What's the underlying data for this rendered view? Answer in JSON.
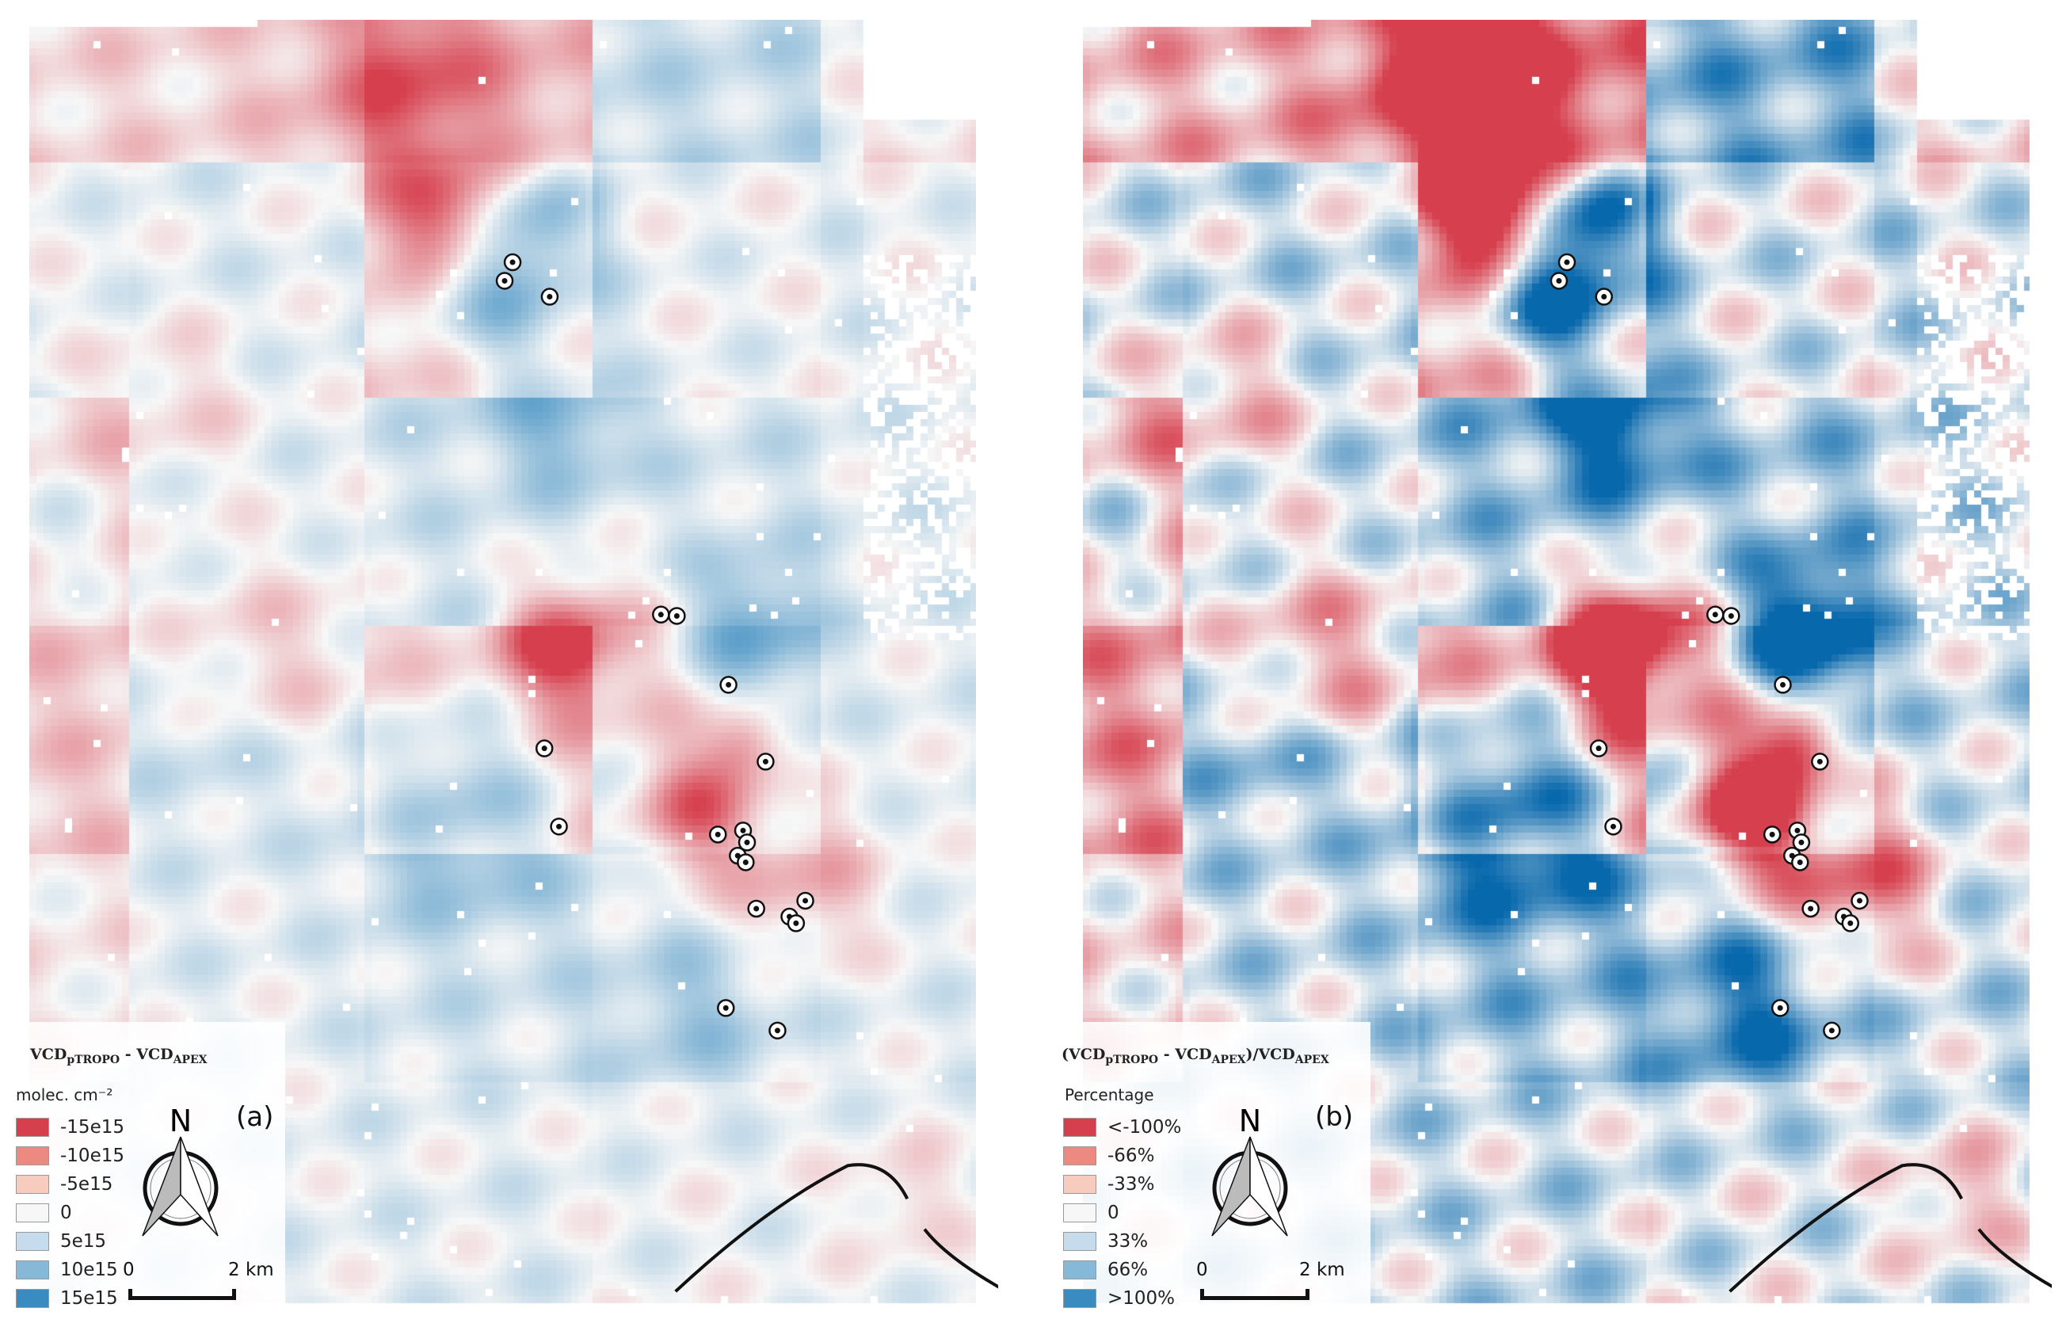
{
  "panels": [
    {
      "id": "a",
      "tag": "(a)",
      "title_main": "VCD",
      "title_sub1": "pTROPO",
      "title_mid": " - VCD",
      "title_sub2": "APEX",
      "title_tail": "",
      "unit": "molec. cm⁻²",
      "legend": [
        {
          "label": "-15e15",
          "color": "#d6404e"
        },
        {
          "label": "-10e15",
          "color": "#ec8a82"
        },
        {
          "label": "-5e15",
          "color": "#f7cbbd"
        },
        {
          "label": "0",
          "color": "#f7f7f7"
        },
        {
          "label": "5e15",
          "color": "#c6dced"
        },
        {
          "label": "10e15",
          "color": "#86b9d8"
        },
        {
          "label": "15e15",
          "color": "#3a8bc0"
        }
      ],
      "north_label": "N",
      "scale_start": "0",
      "scale_end": "2 km"
    },
    {
      "id": "b",
      "tag": "(b)",
      "title_main": "(VCD",
      "title_sub1": "pTROPO",
      "title_mid": " - VCD",
      "title_sub2": "APEX",
      "title_tail": ")/VCD",
      "title_sub3": "APEX",
      "unit": "Percentage",
      "legend": [
        {
          "label": "<-100%",
          "color": "#d6404e"
        },
        {
          "label": "-66%",
          "color": "#ec8a82"
        },
        {
          "label": "-33%",
          "color": "#f7cbbd"
        },
        {
          "label": "0",
          "color": "#f7f7f7"
        },
        {
          "label": "33%",
          "color": "#c6dced"
        },
        {
          "label": "66%",
          "color": "#86b9d8"
        },
        {
          "label": ">100%",
          "color": "#3a8bc0"
        }
      ],
      "north_label": "N",
      "scale_start": "0",
      "scale_end": "2 km"
    }
  ]
}
